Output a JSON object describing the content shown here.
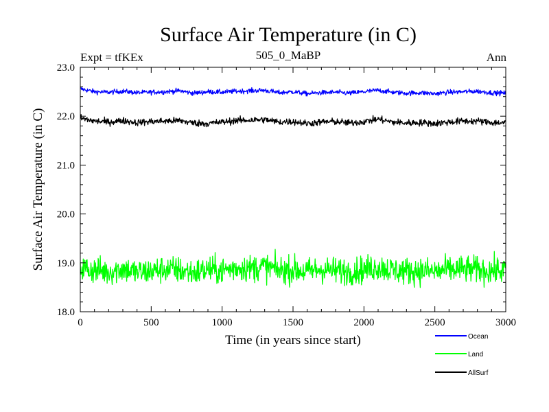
{
  "chart_data": {
    "type": "line",
    "title": "Surface Air Temperature (in C)",
    "subtitle_left": "Expt = tfKEx",
    "subtitle_center": "505_0_MaBP",
    "subtitle_right": "Ann",
    "xlabel": "Time (in years since start)",
    "ylabel": "Surface Air Temperature (in C)",
    "xlim": [
      0,
      3000
    ],
    "ylim": [
      18.0,
      23.0
    ],
    "x_ticks": [
      0,
      500,
      1000,
      1500,
      2000,
      2500,
      3000
    ],
    "x_tick_labels": [
      "0",
      "500",
      "1000",
      "1500",
      "2000",
      "2500",
      "3000"
    ],
    "y_ticks": [
      18.0,
      19.0,
      20.0,
      21.0,
      22.0,
      23.0
    ],
    "y_tick_labels": [
      "18.0",
      "19.0",
      "20.0",
      "21.0",
      "22.0",
      "23.0"
    ],
    "grid": false,
    "legend_position": "bottom-right",
    "series": [
      {
        "name": "Ocean",
        "color": "#0000ff",
        "x": [
          0,
          100,
          200,
          300,
          400,
          500,
          600,
          700,
          800,
          900,
          1000,
          1100,
          1200,
          1300,
          1400,
          1500,
          1600,
          1700,
          1800,
          1900,
          2000,
          2100,
          2200,
          2300,
          2400,
          2500,
          2600,
          2700,
          2800,
          2900,
          3000
        ],
        "y": [
          22.56,
          22.5,
          22.49,
          22.51,
          22.48,
          22.49,
          22.5,
          22.52,
          22.47,
          22.5,
          22.49,
          22.51,
          22.52,
          22.53,
          22.48,
          22.5,
          22.46,
          22.48,
          22.49,
          22.47,
          22.5,
          22.53,
          22.49,
          22.47,
          22.48,
          22.46,
          22.49,
          22.5,
          22.51,
          22.48,
          22.47
        ]
      },
      {
        "name": "Land",
        "color": "#00ff00",
        "x": [
          0,
          100,
          200,
          300,
          400,
          500,
          600,
          700,
          800,
          900,
          1000,
          1100,
          1200,
          1300,
          1400,
          1500,
          1600,
          1700,
          1800,
          1900,
          2000,
          2100,
          2200,
          2300,
          2400,
          2500,
          2600,
          2700,
          2800,
          2900,
          3000
        ],
        "y": [
          18.9,
          18.85,
          18.82,
          18.88,
          18.8,
          18.83,
          18.87,
          18.85,
          18.8,
          18.86,
          18.84,
          18.9,
          18.89,
          18.92,
          18.85,
          18.86,
          18.82,
          18.87,
          18.84,
          18.83,
          18.86,
          18.92,
          18.85,
          18.83,
          18.84,
          18.82,
          18.86,
          18.87,
          18.86,
          18.84,
          18.85
        ]
      },
      {
        "name": "AllSurf",
        "color": "#000000",
        "x": [
          0,
          100,
          200,
          300,
          400,
          500,
          600,
          700,
          800,
          900,
          1000,
          1100,
          1200,
          1300,
          1400,
          1500,
          1600,
          1700,
          1800,
          1900,
          2000,
          2100,
          2200,
          2300,
          2400,
          2500,
          2600,
          2700,
          2800,
          2900,
          3000
        ],
        "y": [
          21.96,
          21.9,
          21.88,
          21.91,
          21.87,
          21.89,
          21.9,
          21.91,
          21.86,
          21.85,
          21.88,
          21.91,
          21.92,
          21.93,
          21.88,
          21.89,
          21.85,
          21.88,
          21.89,
          21.86,
          21.89,
          21.94,
          21.88,
          21.86,
          21.87,
          21.85,
          21.88,
          21.9,
          21.9,
          21.87,
          21.86
        ]
      }
    ]
  }
}
